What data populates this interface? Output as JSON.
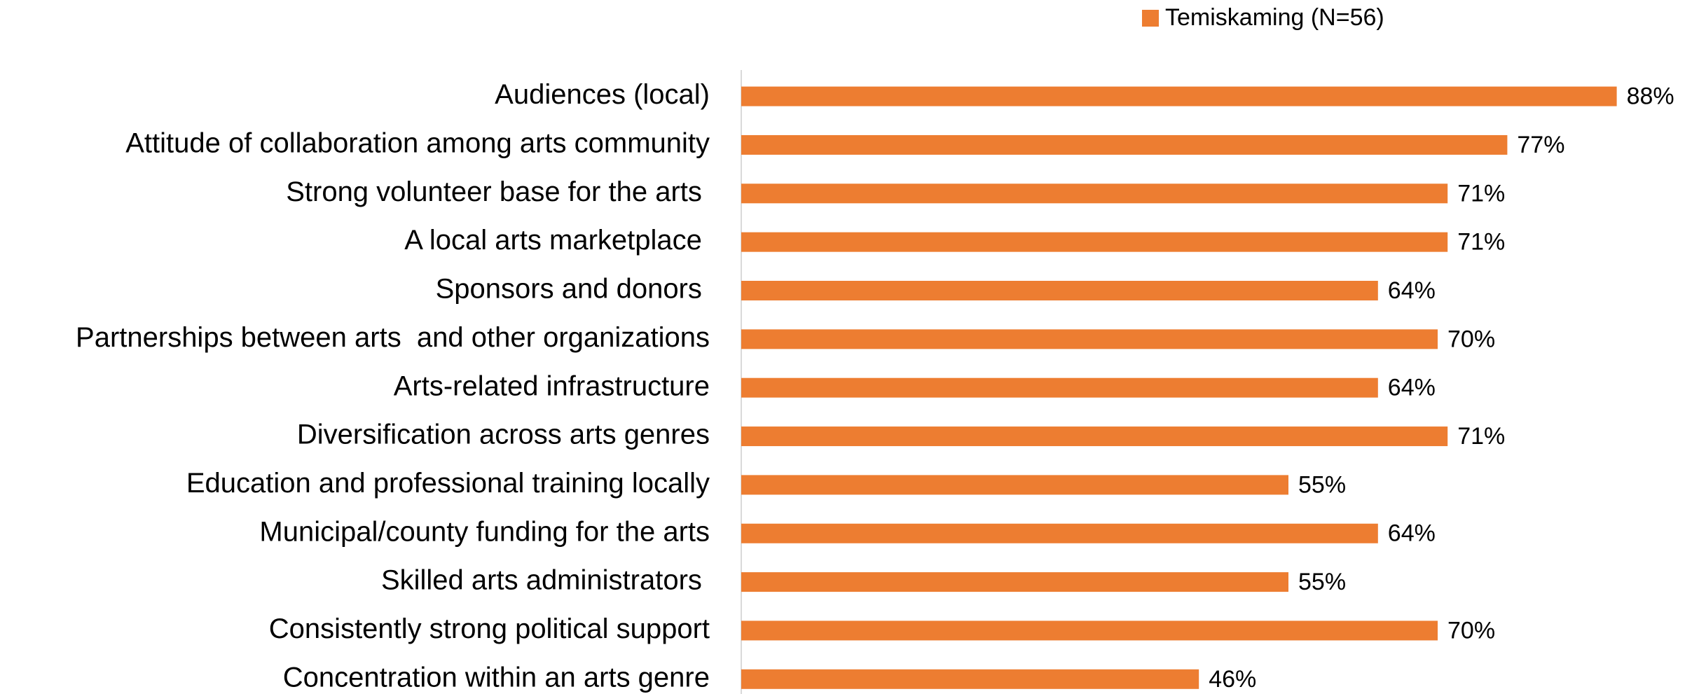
{
  "chart_data": {
    "type": "bar",
    "orientation": "horizontal",
    "categories": [
      "Audiences (local)",
      "Attitude of collaboration among arts community",
      "Strong volunteer base for the arts ",
      "A local arts marketplace ",
      "Sponsors and donors ",
      "Partnerships between arts  and other organizations",
      "Arts-related infrastructure",
      "Diversification across arts genres",
      "Education and professional training locally",
      "Municipal/county funding for the arts",
      "Skilled arts administrators ",
      "Consistently strong political support",
      "Concentration within an arts genre"
    ],
    "series": [
      {
        "name": "Temiskaming (N=56)",
        "color": "#ed7d31",
        "values": [
          88,
          77,
          71,
          71,
          64,
          70,
          64,
          71,
          55,
          64,
          55,
          70,
          46
        ],
        "value_labels": [
          "88%",
          "77%",
          "71%",
          "71%",
          "64%",
          "70%",
          "64%",
          "71%",
          "55%",
          "64%",
          "55%",
          "70%",
          "46%"
        ]
      }
    ],
    "legend": "top"
  }
}
